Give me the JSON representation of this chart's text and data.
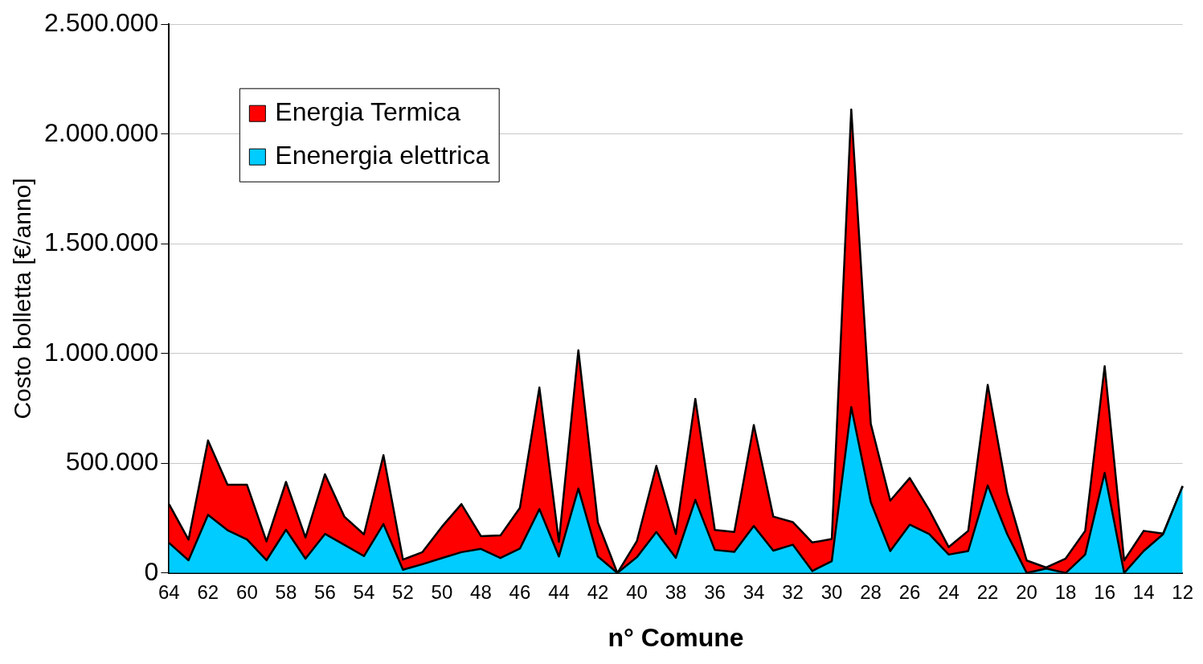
{
  "chart_data": {
    "type": "area",
    "stacked": true,
    "xlabel": "n° Comune",
    "ylabel": "Costo bolletta [€/anno]",
    "categories": [
      "64",
      null,
      "62",
      null,
      "60",
      null,
      "58",
      null,
      "56",
      null,
      "54",
      null,
      "52",
      null,
      "50",
      null,
      "48",
      null,
      "46",
      null,
      "44",
      null,
      "42",
      null,
      "40",
      null,
      "38",
      null,
      "36",
      null,
      "34",
      null,
      "32",
      null,
      "30",
      null,
      "28",
      null,
      "26",
      null,
      "24",
      null,
      "22",
      null,
      "20",
      null,
      "18",
      null,
      "16",
      null,
      "14",
      null,
      "12"
    ],
    "series": [
      {
        "name": "Enenergia elettrica",
        "color": "#00ccff",
        "values": [
          137000,
          58000,
          265000,
          195000,
          153000,
          58000,
          197000,
          65000,
          178000,
          128000,
          77000,
          223000,
          15000,
          40000,
          68000,
          95000,
          110000,
          68000,
          111000,
          291000,
          75000,
          385000,
          75000,
          0,
          72000,
          187000,
          69000,
          333000,
          105000,
          96000,
          214000,
          102000,
          129000,
          9000,
          54000,
          756000,
          323000,
          100000,
          220000,
          177000,
          84000,
          100000,
          399000,
          177000,
          0,
          20000,
          0,
          84000,
          456000,
          0,
          100000,
          177000,
          396000
        ]
      },
      {
        "name": "Energia Termica",
        "color": "#ff0000",
        "values": [
          177000,
          94000,
          339000,
          207000,
          249000,
          86000,
          218000,
          97000,
          272000,
          128000,
          99000,
          314000,
          46000,
          55000,
          143000,
          219000,
          58000,
          103000,
          186000,
          554000,
          67000,
          630000,
          155000,
          0,
          73000,
          301000,
          109000,
          460000,
          91000,
          91000,
          460000,
          155000,
          103000,
          130000,
          101000,
          1356000,
          357000,
          230000,
          213000,
          110000,
          34000,
          92000,
          458000,
          187000,
          57000,
          5000,
          66000,
          108000,
          486000,
          57000,
          92000,
          3000,
          0
        ]
      }
    ],
    "ylim": [
      0,
      2500000
    ],
    "yticks": [
      0,
      {
        "value": 500000,
        "label": "500.000"
      },
      {
        "value": 1000000,
        "label": "1.000.000"
      },
      {
        "value": 1500000,
        "label": "1.500.000"
      },
      {
        "value": 2000000,
        "label": "2.000.000"
      },
      {
        "value": 2500000,
        "label": "2.500.000"
      }
    ],
    "grid": "y",
    "legend": "top left",
    "marker": "none"
  }
}
